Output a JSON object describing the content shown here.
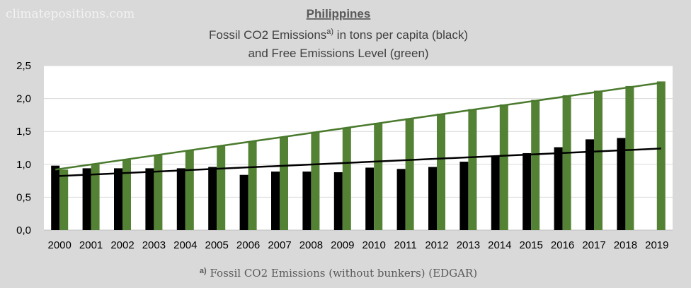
{
  "watermark": "climatepositions.com",
  "chart_data": {
    "type": "bar",
    "title": "Philippines",
    "subtitle_line1_pre": "Fossil CO2 Emissions",
    "subtitle_line1_sup": "a)",
    "subtitle_line1_post": " in tons per capita (black)",
    "subtitle_line2": "and Free Emissions Level (green)",
    "ylim": [
      0,
      2.5
    ],
    "yticks": [
      "0,0",
      "0,5",
      "1,0",
      "1,5",
      "2,0",
      "2,5"
    ],
    "ytick_values": [
      0,
      0.5,
      1.0,
      1.5,
      2.0,
      2.5
    ],
    "grid": true,
    "categories": [
      "2000",
      "2001",
      "2002",
      "2003",
      "2004",
      "2005",
      "2006",
      "2007",
      "2008",
      "2009",
      "2010",
      "2011",
      "2012",
      "2013",
      "2014",
      "2015",
      "2016",
      "2017",
      "2018",
      "2019"
    ],
    "series": [
      {
        "color": "#000000",
        "values": [
          0.98,
          0.94,
          0.94,
          0.94,
          0.94,
          0.96,
          0.84,
          0.89,
          0.89,
          0.88,
          0.95,
          0.93,
          0.96,
          1.04,
          1.13,
          1.17,
          1.26,
          1.38,
          1.4,
          null
        ]
      },
      {
        "color": "#548235",
        "values": [
          0.92,
          1.0,
          1.07,
          1.14,
          1.21,
          1.28,
          1.35,
          1.42,
          1.49,
          1.56,
          1.63,
          1.7,
          1.77,
          1.84,
          1.91,
          1.98,
          2.05,
          2.12,
          2.19,
          2.26
        ]
      }
    ],
    "trendlines": [
      {
        "color": "#000000",
        "from": [
          "2000",
          0.82
        ],
        "to": [
          "2019",
          1.24
        ]
      },
      {
        "color": "#4a7a2d",
        "from": [
          "2000",
          0.92
        ],
        "to": [
          "2019",
          2.24
        ]
      }
    ],
    "footnote_sup": "a)",
    "footnote_text": " Fossil CO2 Emissions (without bunkers) (EDGAR)"
  }
}
